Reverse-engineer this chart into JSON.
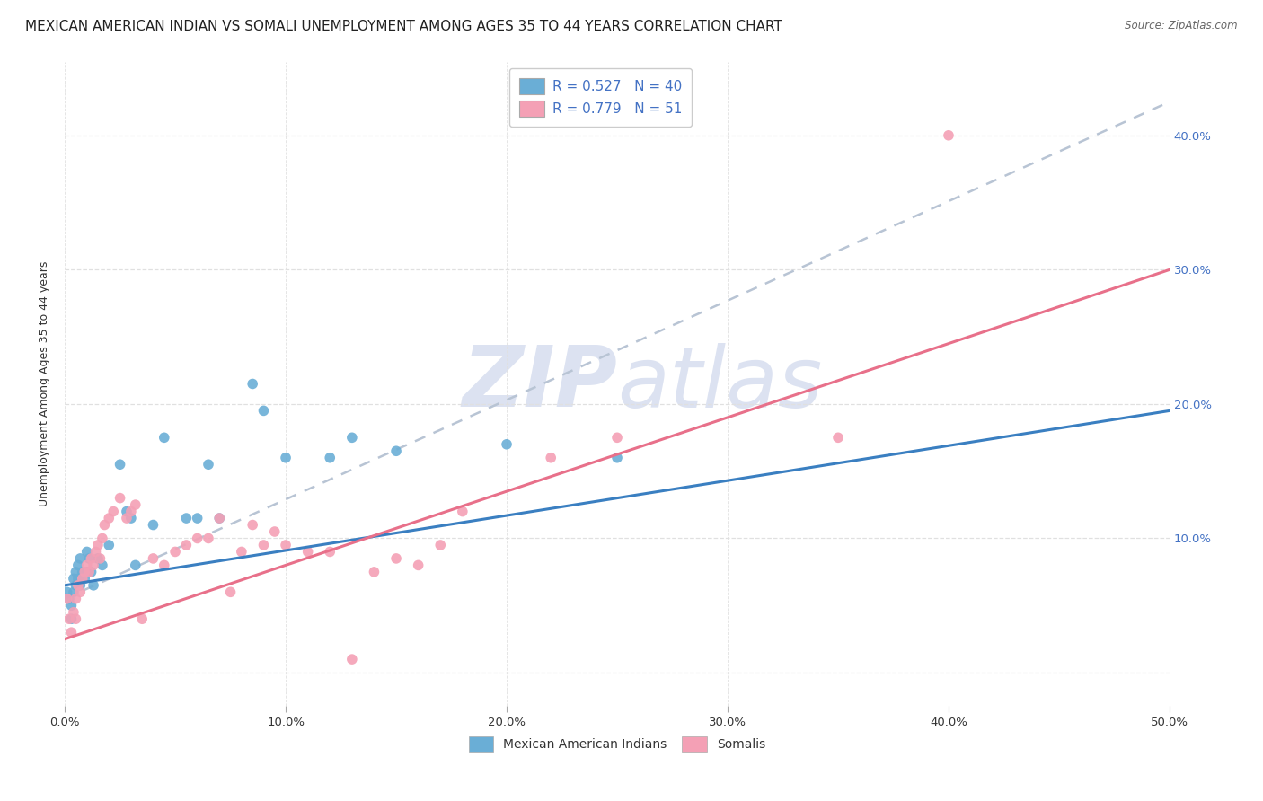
{
  "title": "MEXICAN AMERICAN INDIAN VS SOMALI UNEMPLOYMENT AMONG AGES 35 TO 44 YEARS CORRELATION CHART",
  "source": "Source: ZipAtlas.com",
  "ylabel": "Unemployment Among Ages 35 to 44 years",
  "xlim": [
    0.0,
    0.5
  ],
  "ylim": [
    -0.025,
    0.455
  ],
  "xticks": [
    0.0,
    0.1,
    0.2,
    0.3,
    0.4,
    0.5
  ],
  "yticks": [
    0.0,
    0.1,
    0.2,
    0.3,
    0.4
  ],
  "xtick_labels": [
    "0.0%",
    "10.0%",
    "20.0%",
    "30.0%",
    "40.0%",
    "50.0%"
  ],
  "ytick_labels_right": [
    "",
    "10.0%",
    "20.0%",
    "30.0%",
    "40.0%"
  ],
  "blue_color": "#6aaed6",
  "pink_color": "#f4a0b5",
  "blue_line_color": "#3a7fc1",
  "pink_line_color": "#e8708a",
  "dashed_line_color": "#b8c4d4",
  "watermark_color": "#c5cfe8",
  "tick_label_color": "#4472c4",
  "R_blue": 0.527,
  "N_blue": 40,
  "R_pink": 0.779,
  "N_pink": 51,
  "blue_x": [
    0.001,
    0.002,
    0.003,
    0.003,
    0.004,
    0.004,
    0.005,
    0.005,
    0.006,
    0.006,
    0.007,
    0.007,
    0.008,
    0.009,
    0.01,
    0.01,
    0.011,
    0.012,
    0.013,
    0.015,
    0.017,
    0.02,
    0.025,
    0.028,
    0.03,
    0.032,
    0.04,
    0.045,
    0.055,
    0.06,
    0.065,
    0.07,
    0.085,
    0.09,
    0.1,
    0.12,
    0.13,
    0.15,
    0.2,
    0.25
  ],
  "blue_y": [
    0.06,
    0.055,
    0.05,
    0.04,
    0.06,
    0.07,
    0.065,
    0.075,
    0.07,
    0.08,
    0.065,
    0.085,
    0.075,
    0.07,
    0.075,
    0.09,
    0.085,
    0.075,
    0.065,
    0.085,
    0.08,
    0.095,
    0.155,
    0.12,
    0.115,
    0.08,
    0.11,
    0.175,
    0.115,
    0.115,
    0.155,
    0.115,
    0.215,
    0.195,
    0.16,
    0.16,
    0.175,
    0.165,
    0.17,
    0.16
  ],
  "pink_x": [
    0.001,
    0.002,
    0.003,
    0.004,
    0.005,
    0.005,
    0.006,
    0.007,
    0.008,
    0.009,
    0.01,
    0.011,
    0.012,
    0.013,
    0.014,
    0.015,
    0.016,
    0.017,
    0.018,
    0.02,
    0.022,
    0.025,
    0.028,
    0.03,
    0.032,
    0.035,
    0.04,
    0.045,
    0.05,
    0.055,
    0.06,
    0.065,
    0.07,
    0.075,
    0.08,
    0.085,
    0.09,
    0.095,
    0.1,
    0.11,
    0.12,
    0.13,
    0.14,
    0.15,
    0.16,
    0.17,
    0.18,
    0.22,
    0.25,
    0.35,
    0.4
  ],
  "pink_y": [
    0.055,
    0.04,
    0.03,
    0.045,
    0.055,
    0.04,
    0.065,
    0.06,
    0.07,
    0.075,
    0.08,
    0.075,
    0.085,
    0.08,
    0.09,
    0.095,
    0.085,
    0.1,
    0.11,
    0.115,
    0.12,
    0.13,
    0.115,
    0.12,
    0.125,
    0.04,
    0.085,
    0.08,
    0.09,
    0.095,
    0.1,
    0.1,
    0.115,
    0.06,
    0.09,
    0.11,
    0.095,
    0.105,
    0.095,
    0.09,
    0.09,
    0.01,
    0.075,
    0.085,
    0.08,
    0.095,
    0.12,
    0.16,
    0.175,
    0.175,
    0.4
  ],
  "blue_trend_x": [
    0.0,
    0.5
  ],
  "blue_trend_y": [
    0.065,
    0.195
  ],
  "pink_trend_x": [
    0.0,
    0.5
  ],
  "pink_trend_y": [
    0.025,
    0.3
  ],
  "dashed_trend_x": [
    0.0,
    0.5
  ],
  "dashed_trend_y": [
    0.055,
    0.425
  ],
  "background_color": "#ffffff",
  "grid_color": "#e0e0e0",
  "title_fontsize": 11,
  "axis_label_fontsize": 9,
  "tick_fontsize": 9.5,
  "legend_R_N_color": "#4472c4",
  "scatter_size": 70
}
